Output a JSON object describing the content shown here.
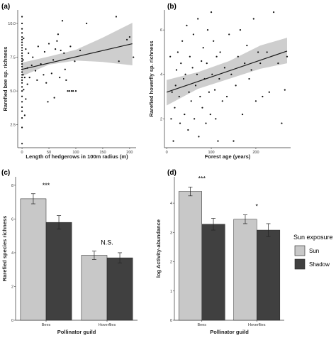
{
  "colors": {
    "sun": "#c8c8c8",
    "shadow": "#404040",
    "ribbon": "#c9c9c9",
    "line": "#1a1a1a",
    "point": "#111111"
  },
  "legend": {
    "title": "Sun exposure",
    "items": [
      {
        "label": "Sun",
        "color": "#c8c8c8"
      },
      {
        "label": "Shadow",
        "color": "#404040"
      }
    ]
  },
  "chart_data": [
    {
      "panel": "(a)",
      "type": "scatter",
      "xlabel": "Length of hedgerows in 100m radius (m)",
      "ylabel": "Rarefied bee sp. richness",
      "xlim": [
        -8,
        212
      ],
      "ylim": [
        0.8,
        11
      ],
      "xticks": [
        0,
        50,
        100,
        150,
        200
      ],
      "yticks": [
        2.5,
        5.0,
        7.5,
        10.0
      ],
      "ytick_labels": [
        "2.5",
        "5.0",
        "7.5",
        "10.0"
      ],
      "trend": {
        "x": [
          0,
          205
        ],
        "y": [
          6.6,
          8.5
        ]
      },
      "ribbon": {
        "x": [
          0,
          50,
          100,
          150,
          205
        ],
        "lower": [
          6.1,
          6.95,
          7.25,
          7.15,
          6.9
        ],
        "upper": [
          7.1,
          7.55,
          8.05,
          8.95,
          10.05
        ]
      },
      "points": [
        [
          0,
          1.1
        ],
        [
          0,
          2.3
        ],
        [
          0,
          3.0
        ],
        [
          0,
          3.5
        ],
        [
          0,
          3.8
        ],
        [
          0,
          4.2
        ],
        [
          0,
          4.6
        ],
        [
          0,
          5.0
        ],
        [
          0,
          5.3
        ],
        [
          0,
          5.6
        ],
        [
          0,
          5.8
        ],
        [
          0,
          6.0
        ],
        [
          0,
          6.2
        ],
        [
          0,
          6.4
        ],
        [
          0,
          6.6
        ],
        [
          0,
          6.8
        ],
        [
          0,
          7.0
        ],
        [
          0,
          7.2
        ],
        [
          0,
          7.4
        ],
        [
          0,
          7.6
        ],
        [
          0,
          7.8
        ],
        [
          0,
          8.0
        ],
        [
          0,
          8.2
        ],
        [
          0,
          8.4
        ],
        [
          0,
          8.6
        ],
        [
          0,
          8.8
        ],
        [
          0,
          9.0
        ],
        [
          0,
          9.3
        ],
        [
          0,
          9.6
        ],
        [
          0,
          10.0
        ],
        [
          0,
          10.5
        ],
        [
          2,
          6.2
        ],
        [
          2,
          7.3
        ],
        [
          3,
          5.1
        ],
        [
          3,
          8.9
        ],
        [
          5,
          3.2
        ],
        [
          5,
          6.0
        ],
        [
          7,
          4.4
        ],
        [
          7,
          8.1
        ],
        [
          10,
          5.5
        ],
        [
          10,
          6.7
        ],
        [
          12,
          7.8
        ],
        [
          14,
          6.0
        ],
        [
          18,
          6.9
        ],
        [
          20,
          7.5
        ],
        [
          25,
          6.5
        ],
        [
          28,
          5.8
        ],
        [
          30,
          8.3
        ],
        [
          35,
          7.0
        ],
        [
          40,
          6.2
        ],
        [
          42,
          7.9
        ],
        [
          45,
          5.6
        ],
        [
          48,
          4.2
        ],
        [
          50,
          8.5
        ],
        [
          55,
          6.3
        ],
        [
          58,
          7.3
        ],
        [
          60,
          4.5
        ],
        [
          62,
          8.1
        ],
        [
          65,
          8.7
        ],
        [
          67,
          9.2
        ],
        [
          70,
          6.0
        ],
        [
          72,
          8.0
        ],
        [
          75,
          10.2
        ],
        [
          78,
          7.8
        ],
        [
          80,
          6.6
        ],
        [
          82,
          5.8
        ],
        [
          85,
          5.0
        ],
        [
          88,
          5.0
        ],
        [
          90,
          8.3
        ],
        [
          92,
          5.0
        ],
        [
          95,
          5.0
        ],
        [
          98,
          7.2
        ],
        [
          100,
          5.0
        ],
        [
          108,
          8.0
        ],
        [
          120,
          10.0
        ],
        [
          175,
          10.5
        ],
        [
          180,
          7.2
        ],
        [
          195,
          8.8
        ],
        [
          200,
          9.0
        ],
        [
          207,
          7.5
        ]
      ]
    },
    {
      "panel": "(b)",
      "type": "scatter",
      "xlabel": "Forest age (years)",
      "ylabel": "Rarefied hoverfly sp. richness",
      "xlim": [
        -5,
        278
      ],
      "ylim": [
        0.7,
        6.9
      ],
      "xticks": [
        0,
        100,
        200
      ],
      "yticks": [
        2,
        4,
        6
      ],
      "ytick_labels": [
        "2",
        "4",
        "6"
      ],
      "trend": {
        "x": [
          0,
          270
        ],
        "y": [
          3.2,
          5.05
        ]
      },
      "ribbon": {
        "x": [
          0,
          70,
          140,
          210,
          270
        ],
        "lower": [
          2.6,
          3.35,
          3.8,
          4.25,
          4.5
        ],
        "upper": [
          3.75,
          4.1,
          4.6,
          5.3,
          5.65
        ]
      },
      "points": [
        [
          8,
          4.8
        ],
        [
          10,
          2.0
        ],
        [
          12,
          3.2
        ],
        [
          15,
          1.0
        ],
        [
          18,
          2.5
        ],
        [
          20,
          3.5
        ],
        [
          22,
          4.2
        ],
        [
          25,
          5.0
        ],
        [
          28,
          3.0
        ],
        [
          30,
          1.8
        ],
        [
          32,
          4.5
        ],
        [
          35,
          5.5
        ],
        [
          38,
          3.8
        ],
        [
          40,
          2.2
        ],
        [
          42,
          4.0
        ],
        [
          45,
          6.2
        ],
        [
          48,
          1.5
        ],
        [
          50,
          3.2
        ],
        [
          52,
          4.8
        ],
        [
          55,
          2.8
        ],
        [
          58,
          4.3
        ],
        [
          60,
          5.8
        ],
        [
          62,
          2.0
        ],
        [
          65,
          3.5
        ],
        [
          68,
          4.0
        ],
        [
          70,
          6.5
        ],
        [
          72,
          1.2
        ],
        [
          75,
          3.0
        ],
        [
          78,
          4.6
        ],
        [
          80,
          2.5
        ],
        [
          82,
          5.2
        ],
        [
          85,
          3.8
        ],
        [
          88,
          1.8
        ],
        [
          90,
          4.5
        ],
        [
          92,
          6.0
        ],
        [
          95,
          3.2
        ],
        [
          98,
          2.2
        ],
        [
          100,
          6.8
        ],
        [
          102,
          4.0
        ],
        [
          105,
          5.5
        ],
        [
          108,
          3.3
        ],
        [
          110,
          2.0
        ],
        [
          112,
          4.8
        ],
        [
          115,
          1.0
        ],
        [
          118,
          3.8
        ],
        [
          120,
          5.0
        ],
        [
          125,
          2.8
        ],
        [
          130,
          4.3
        ],
        [
          135,
          3.0
        ],
        [
          140,
          5.8
        ],
        [
          145,
          4.0
        ],
        [
          150,
          1.0
        ],
        [
          155,
          3.5
        ],
        [
          160,
          4.8
        ],
        [
          165,
          6.0
        ],
        [
          170,
          2.2
        ],
        [
          175,
          4.5
        ],
        [
          180,
          5.3
        ],
        [
          185,
          3.8
        ],
        [
          190,
          4.2
        ],
        [
          195,
          6.5
        ],
        [
          200,
          2.8
        ],
        [
          205,
          5.0
        ],
        [
          210,
          4.5
        ],
        [
          215,
          3.0
        ],
        [
          225,
          5.0
        ],
        [
          230,
          3.2
        ],
        [
          240,
          6.8
        ],
        [
          250,
          4.5
        ],
        [
          258,
          1.8
        ],
        [
          265,
          3.3
        ],
        [
          270,
          4.8
        ]
      ]
    },
    {
      "panel": "(c)",
      "type": "bar",
      "xlabel": "Pollinator guild",
      "ylabel": "Rarefied species richness",
      "categories": [
        "Bees",
        "Hoverflies"
      ],
      "ylim": [
        0,
        8.5
      ],
      "yticks": [
        0,
        2,
        4,
        6,
        8
      ],
      "ytick_labels": [
        "0",
        "2",
        "4",
        "6",
        "8"
      ],
      "series": [
        {
          "name": "Sun",
          "values": [
            7.2,
            3.85
          ],
          "errors": [
            0.3,
            0.25
          ]
        },
        {
          "name": "Shadow",
          "values": [
            5.8,
            3.7
          ],
          "errors": [
            0.4,
            0.3
          ]
        }
      ],
      "annotations": [
        "***",
        "N.S."
      ]
    },
    {
      "panel": "(d)",
      "type": "bar",
      "xlabel": "Pollinator guild",
      "ylabel": "log Activity-abundance",
      "categories": [
        "Bees",
        "Hoverflies"
      ],
      "ylim": [
        0,
        4.9
      ],
      "yticks": [
        0,
        1,
        2,
        3,
        4
      ],
      "ytick_labels": [
        "0",
        "1",
        "2",
        "3",
        "4"
      ],
      "series": [
        {
          "name": "Sun",
          "values": [
            4.4,
            3.45
          ],
          "errors": [
            0.15,
            0.15
          ]
        },
        {
          "name": "Shadow",
          "values": [
            3.28,
            3.08
          ],
          "errors": [
            0.2,
            0.22
          ]
        }
      ],
      "annotations": [
        "***",
        "*"
      ]
    }
  ]
}
